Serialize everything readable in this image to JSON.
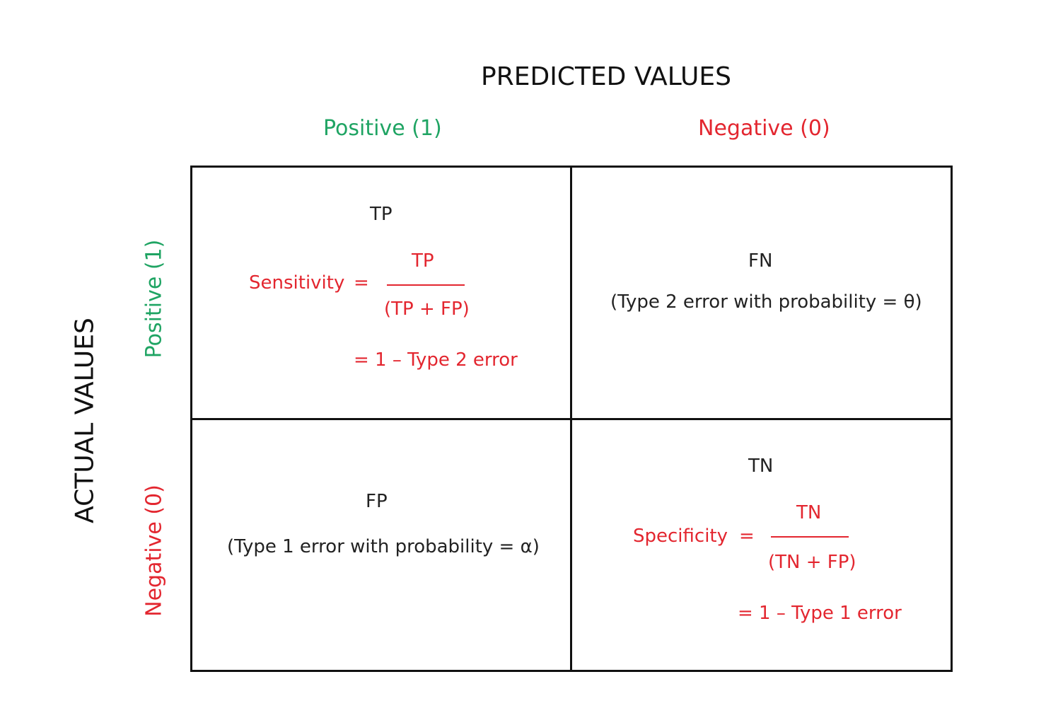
{
  "diagram": {
    "title": "PREDICTED VALUES",
    "actual_label": "ACTUAL VALUES",
    "columns": {
      "positive": "Positive (1)",
      "negative": "Negative (0)"
    },
    "rows": {
      "positive": "Positive (1)",
      "negative": "Negative (0)"
    },
    "cells": {
      "tp": {
        "label": "TP",
        "metric": "Sensitivity",
        "equals": "=",
        "numerator": "TP",
        "denominator": "(TP + FP)",
        "result": "=  1 – Type 2 error"
      },
      "fn": {
        "label": "FN",
        "note": "(Type 2 error with probability = θ)"
      },
      "fp": {
        "label": "FP",
        "note": "(Type 1 error with probability = α)"
      },
      "tn": {
        "label": "TN",
        "metric": "Specificity",
        "equals": "=",
        "numerator": "TN",
        "denominator": "(TN + FP)",
        "result": "=  1 – Type 1 error"
      }
    },
    "colors": {
      "positive": "#1fa463",
      "negative": "#e3262f",
      "metric": "#e3262f",
      "text": "#222222"
    }
  }
}
